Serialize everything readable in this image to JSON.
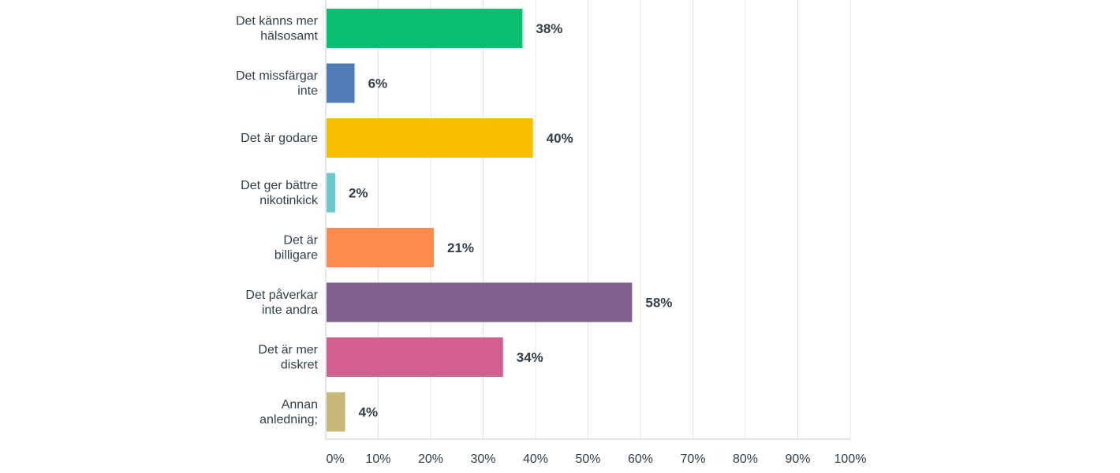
{
  "chart_data": {
    "type": "bar",
    "orientation": "horizontal",
    "title": "",
    "xlabel": "",
    "ylabel": "",
    "xlim": [
      0,
      100
    ],
    "grid": true,
    "legend": "none",
    "ticks": [
      "0%",
      "10%",
      "20%",
      "30%",
      "40%",
      "50%",
      "60%",
      "70%",
      "80%",
      "90%",
      "100%"
    ],
    "tick_values": [
      0,
      10,
      20,
      30,
      40,
      50,
      60,
      70,
      80,
      90,
      100
    ],
    "categories": [
      [
        "Det känns mer",
        "hälsosamt"
      ],
      [
        "Det missfärgar",
        "inte"
      ],
      [
        "Det är godare"
      ],
      [
        "Det ger bättre",
        "nikotinkick"
      ],
      [
        "Det är",
        "billigare"
      ],
      [
        "Det påverkar",
        "inte andra"
      ],
      [
        "Det är mer",
        "diskret"
      ],
      [
        "Annan",
        "anledning;"
      ]
    ],
    "values": [
      37.5,
      5.5,
      39.5,
      1.8,
      20.6,
      58.4,
      33.8,
      3.7
    ],
    "value_labels": [
      "38%",
      "6%",
      "40%",
      "2%",
      "21%",
      "58%",
      "34%",
      "4%"
    ],
    "colors": [
      "#08bf6f",
      "#507cb6",
      "#f9be00",
      "#6bc8cd",
      "#ff8b4f",
      "#7f5f90",
      "#d25f90",
      "#c7b879"
    ],
    "grid_color": "#e0e4e7",
    "axis_color": "#c8ccd0"
  }
}
